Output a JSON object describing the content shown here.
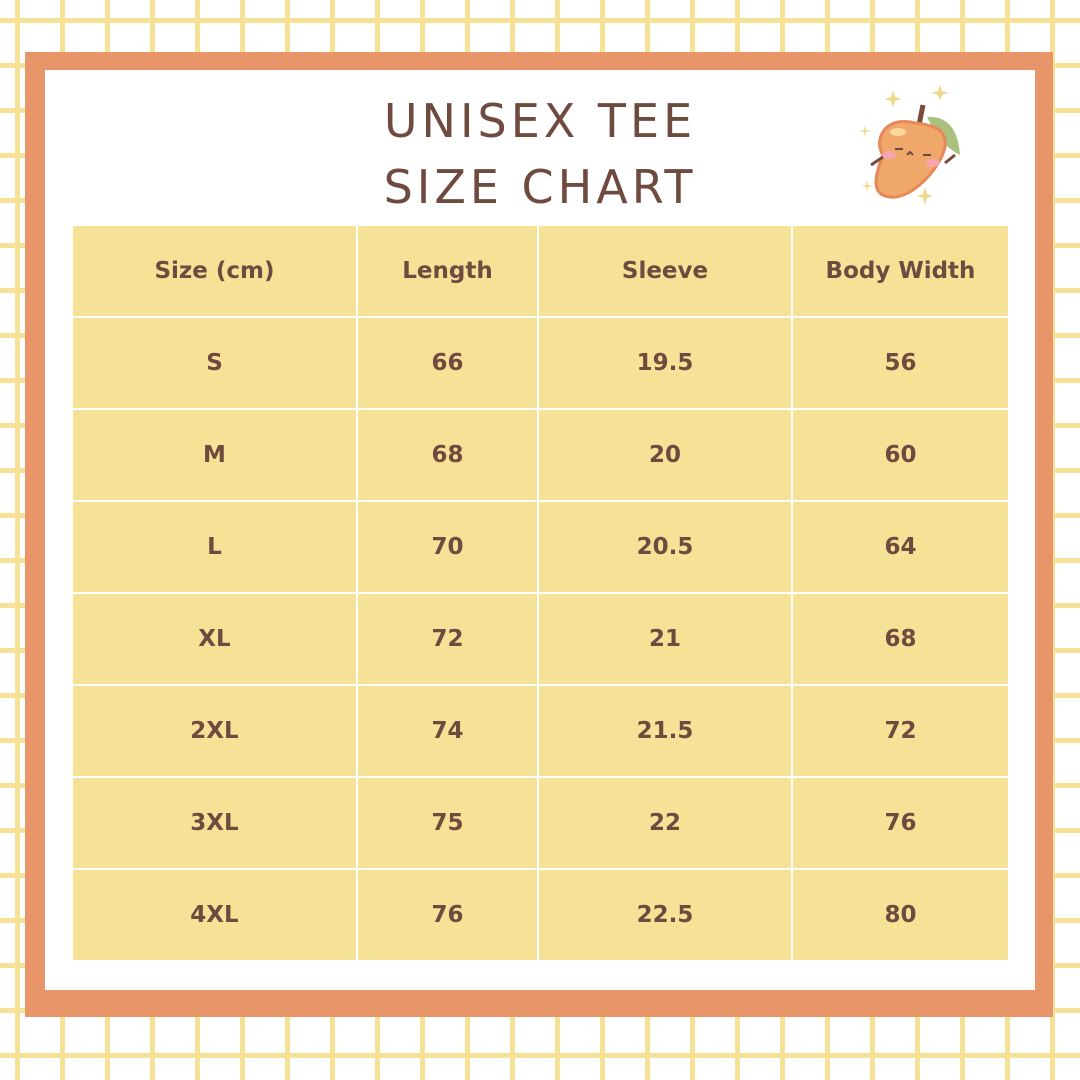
{
  "title": {
    "line1": "UNISEX TEE",
    "line2": "SIZE CHART"
  },
  "icon": "mango-mascot-icon",
  "colors": {
    "frame": "#e8956a",
    "cell": "#f5e297",
    "text": "#6e4a3f",
    "grid": "#f5e297"
  },
  "table": {
    "headers": [
      "Size (cm)",
      "Length",
      "Sleeve",
      "Body Width"
    ],
    "rows": [
      [
        "S",
        "66",
        "19.5",
        "56"
      ],
      [
        "M",
        "68",
        "20",
        "60"
      ],
      [
        "L",
        "70",
        "20.5",
        "64"
      ],
      [
        "XL",
        "72",
        "21",
        "68"
      ],
      [
        "2XL",
        "74",
        "21.5",
        "72"
      ],
      [
        "3XL",
        "75",
        "22",
        "76"
      ],
      [
        "4XL",
        "76",
        "22.5",
        "80"
      ]
    ]
  }
}
